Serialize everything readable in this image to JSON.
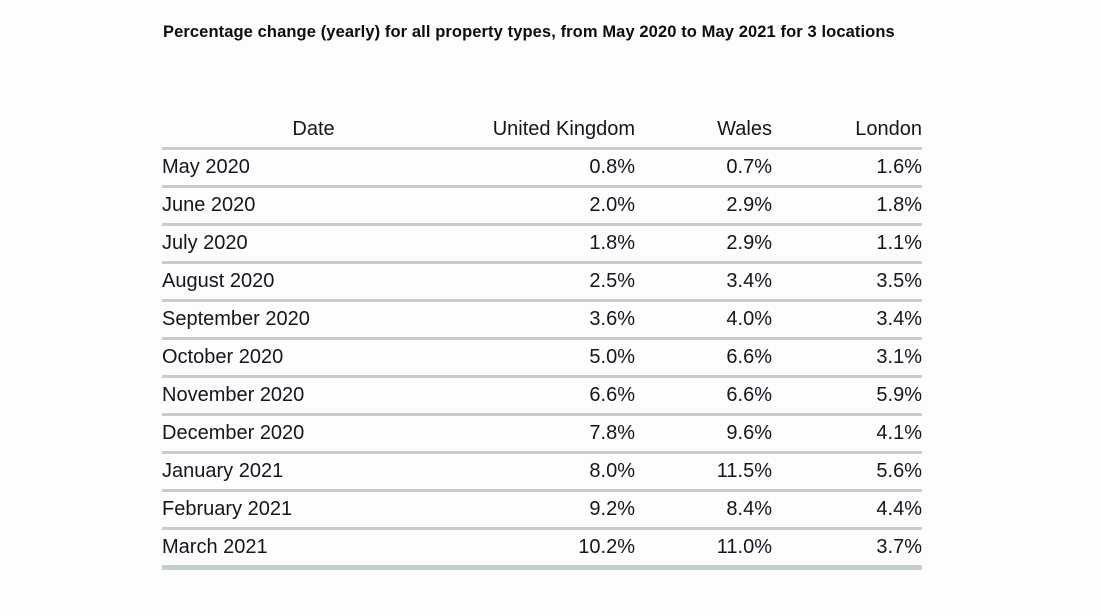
{
  "title": {
    "text": "Percentage change (yearly) for all property types, from May 2020 to May 2021 for 3 locations"
  },
  "table": {
    "columns": [
      "Date",
      "United Kingdom",
      "Wales",
      "London"
    ],
    "rows": [
      {
        "date": "May 2020",
        "uk": "0.8%",
        "wales": "0.7%",
        "london": "1.6%"
      },
      {
        "date": "June 2020",
        "uk": "2.0%",
        "wales": "2.9%",
        "london": "1.8%"
      },
      {
        "date": "July 2020",
        "uk": "1.8%",
        "wales": "2.9%",
        "london": "1.1%"
      },
      {
        "date": "August 2020",
        "uk": "2.5%",
        "wales": "3.4%",
        "london": "3.5%"
      },
      {
        "date": "September 2020",
        "uk": "3.6%",
        "wales": "4.0%",
        "london": "3.4%"
      },
      {
        "date": "October 2020",
        "uk": "5.0%",
        "wales": "6.6%",
        "london": "3.1%"
      },
      {
        "date": "November 2020",
        "uk": "6.6%",
        "wales": "6.6%",
        "london": "5.9%"
      },
      {
        "date": "December 2020",
        "uk": "7.8%",
        "wales": "9.6%",
        "london": "4.1%"
      },
      {
        "date": "January 2021",
        "uk": "8.0%",
        "wales": "11.5%",
        "london": "5.6%"
      },
      {
        "date": "February 2021",
        "uk": "9.2%",
        "wales": "8.4%",
        "london": "4.4%"
      },
      {
        "date": "March 2021",
        "uk": "10.2%",
        "wales": "11.0%",
        "london": "3.7%"
      }
    ]
  },
  "colors": {
    "background": "#fdfdfd",
    "title_text": "#0c0c12",
    "table_text": "#15151f",
    "grid_line": "#c5cfc9"
  },
  "chart_data": {
    "type": "table",
    "title": "Percentage change (yearly) for all property types, from May 2020 to May 2021 for 3 locations",
    "categories": [
      "May 2020",
      "June 2020",
      "July 2020",
      "August 2020",
      "September 2020",
      "October 2020",
      "November 2020",
      "December 2020",
      "January 2021",
      "February 2021",
      "March 2021"
    ],
    "series": [
      {
        "name": "United Kingdom",
        "values": [
          0.8,
          2.0,
          1.8,
          2.5,
          3.6,
          5.0,
          6.6,
          7.8,
          8.0,
          9.2,
          10.2
        ]
      },
      {
        "name": "Wales",
        "values": [
          0.7,
          2.9,
          2.9,
          3.4,
          4.0,
          6.6,
          6.6,
          9.6,
          11.5,
          8.4,
          11.0
        ]
      },
      {
        "name": "London",
        "values": [
          1.6,
          1.8,
          1.1,
          3.5,
          3.4,
          3.1,
          5.9,
          4.1,
          5.6,
          4.4,
          3.7
        ]
      }
    ],
    "unit": "%"
  }
}
